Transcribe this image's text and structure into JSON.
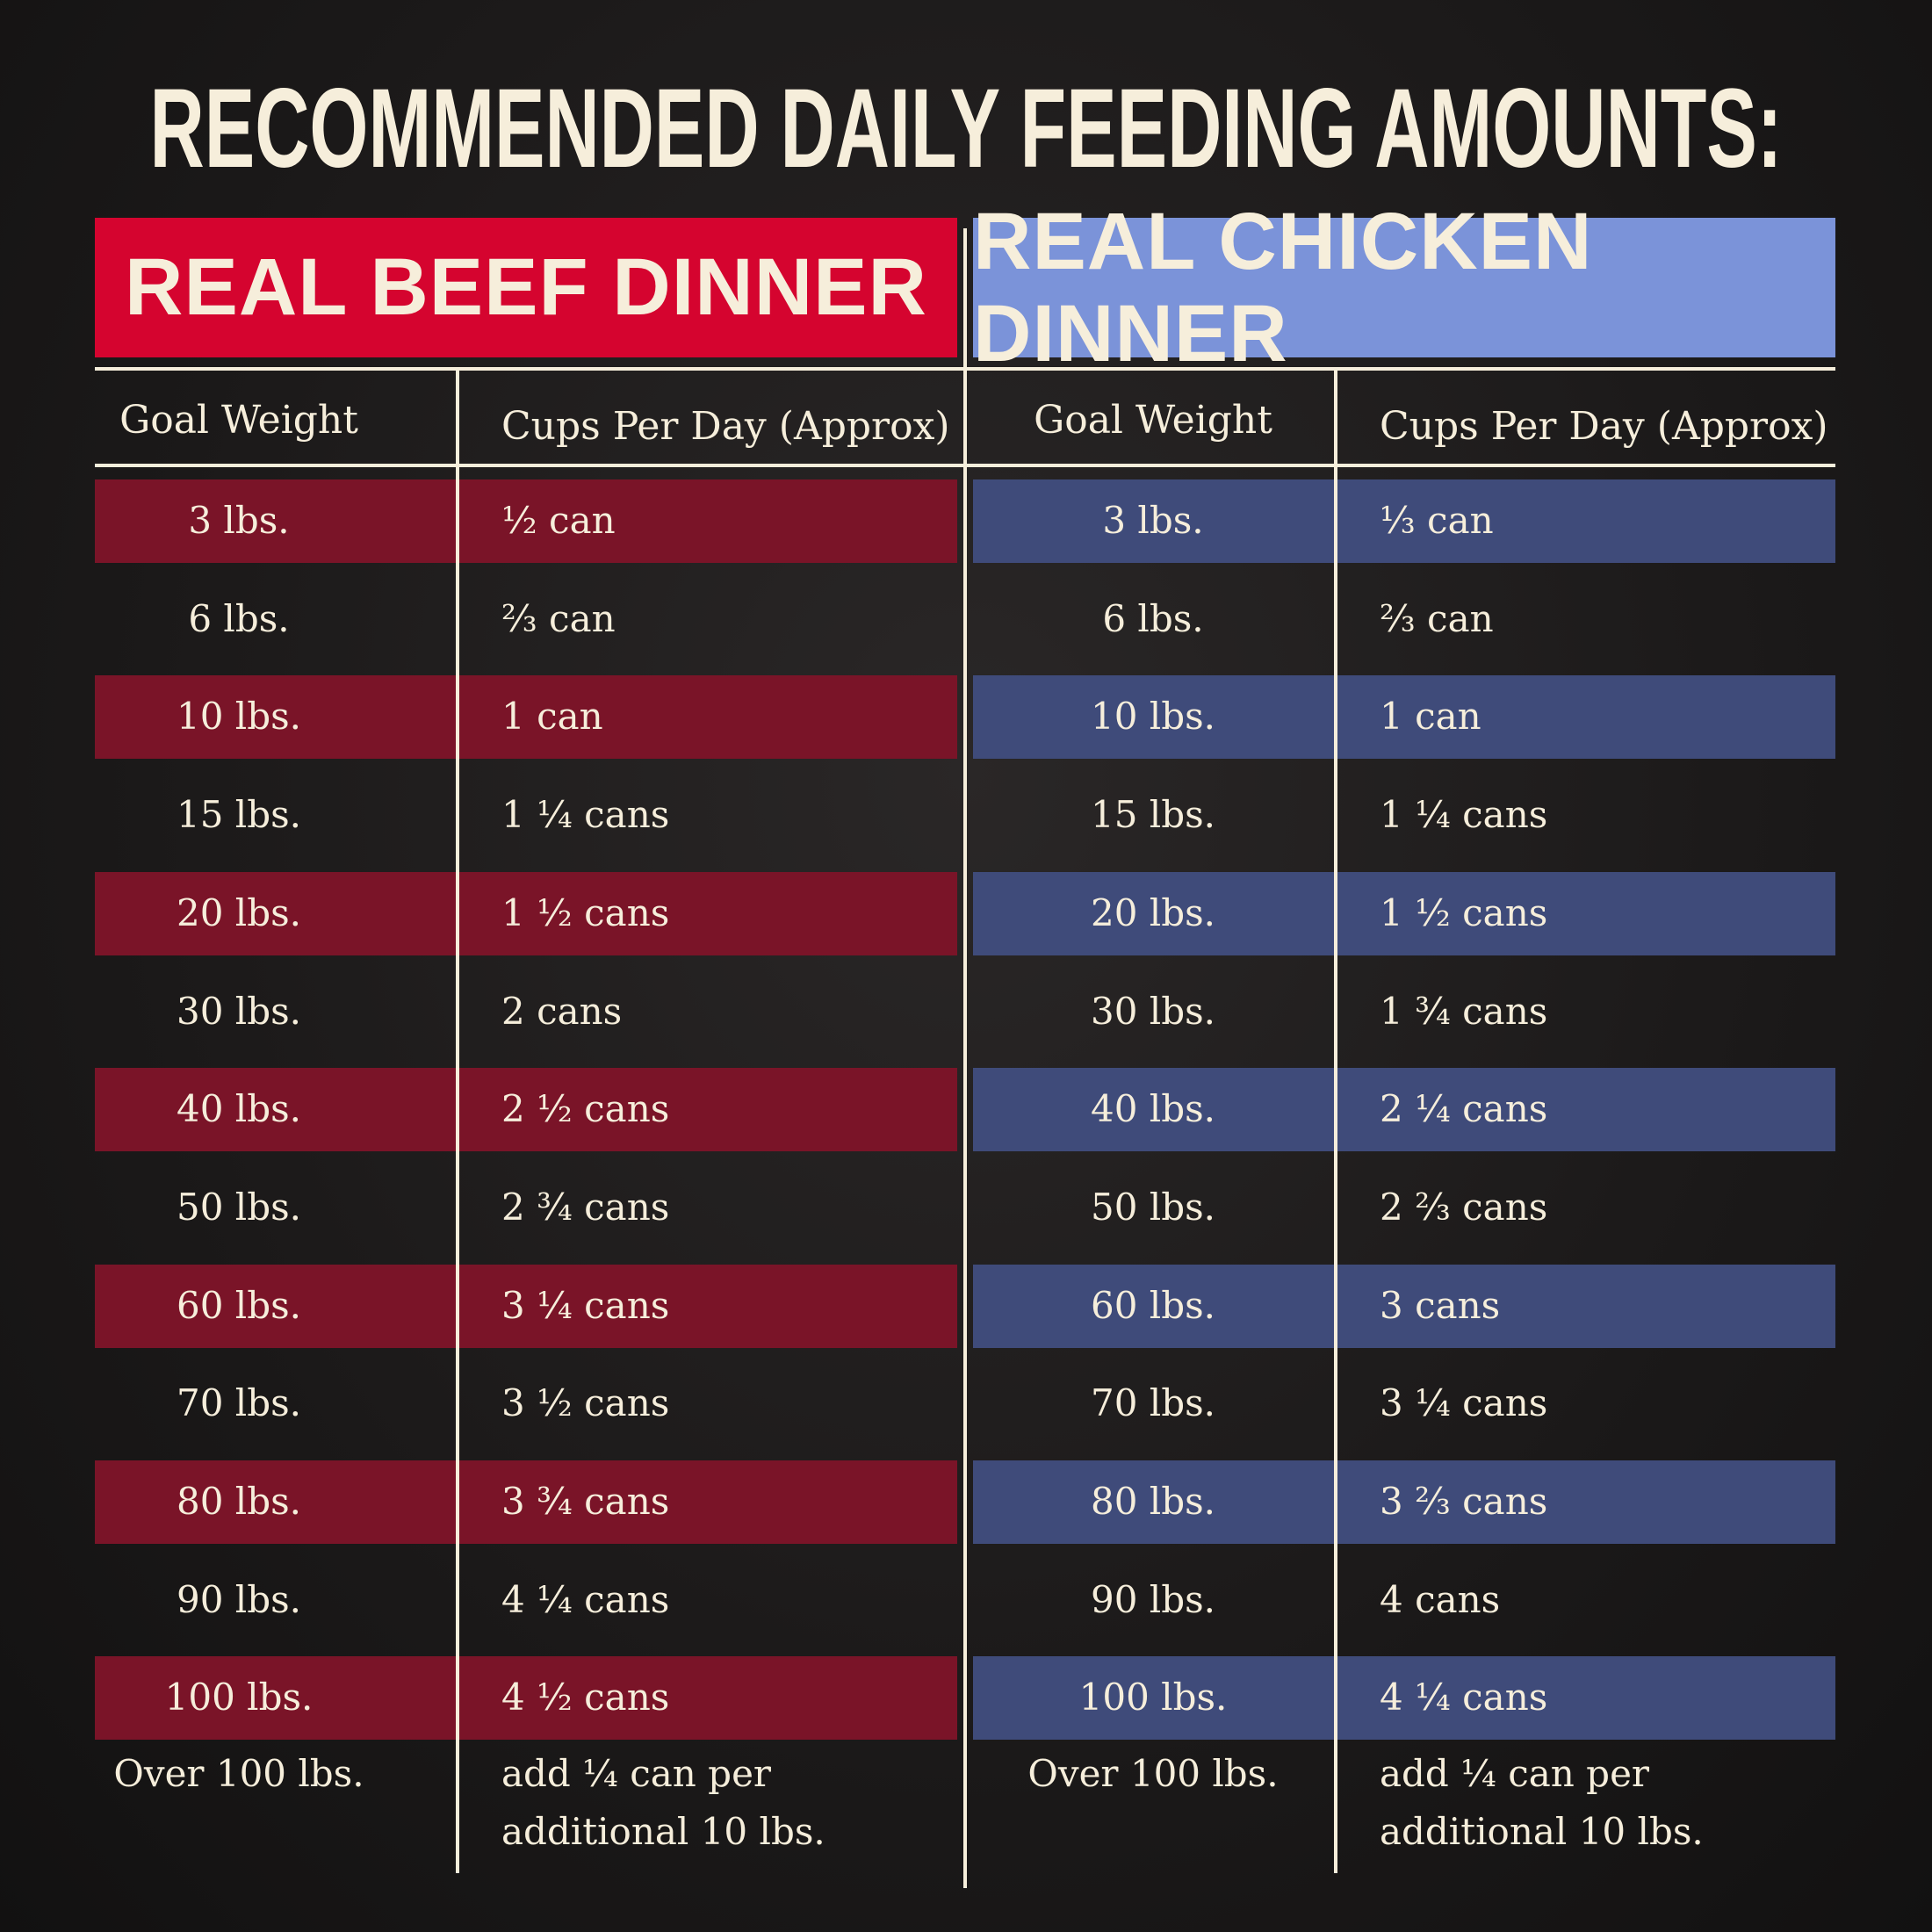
{
  "title": "RECOMMENDED DAILY FEEDING AMOUNTS:",
  "tables": [
    {
      "name": "REAL BEEF DINNER",
      "columns": [
        "Goal Weight",
        "Cups Per Day (Approx)"
      ],
      "rows": [
        [
          "3 lbs.",
          "½ can"
        ],
        [
          "6 lbs.",
          "⅔ can"
        ],
        [
          "10 lbs.",
          "1 can"
        ],
        [
          "15 lbs.",
          "1 ¼ cans"
        ],
        [
          "20 lbs.",
          "1 ½ cans"
        ],
        [
          "30 lbs.",
          "2 cans"
        ],
        [
          "40 lbs.",
          "2 ½ cans"
        ],
        [
          "50 lbs.",
          "2 ¾ cans"
        ],
        [
          "60 lbs.",
          "3 ¼ cans"
        ],
        [
          "70 lbs.",
          "3 ½ cans"
        ],
        [
          "80 lbs.",
          "3 ¾ cans"
        ],
        [
          "90 lbs.",
          "4 ¼ cans"
        ],
        [
          "100 lbs.",
          "4 ½ cans"
        ],
        [
          "Over 100 lbs.",
          "add ¼ can per\nadditional 10 lbs."
        ]
      ]
    },
    {
      "name": "REAL CHICKEN DINNER",
      "columns": [
        "Goal Weight",
        "Cups Per Day (Approx)"
      ],
      "rows": [
        [
          "3 lbs.",
          "⅓ can"
        ],
        [
          "6 lbs.",
          "⅔ can"
        ],
        [
          "10 lbs.",
          "1 can"
        ],
        [
          "15 lbs.",
          "1 ¼ cans"
        ],
        [
          "20 lbs.",
          "1 ½ cans"
        ],
        [
          "30 lbs.",
          "1 ¾ cans"
        ],
        [
          "40 lbs.",
          "2 ¼ cans"
        ],
        [
          "50 lbs.",
          "2 ⅔ cans"
        ],
        [
          "60 lbs.",
          "3 cans"
        ],
        [
          "70 lbs.",
          "3 ¼ cans"
        ],
        [
          "80 lbs.",
          "3 ⅔ cans"
        ],
        [
          "90 lbs.",
          "4 cans"
        ],
        [
          "100 lbs.",
          "4 ¼ cans"
        ],
        [
          "Over 100 lbs.",
          "add ¼ can per\nadditional 10 lbs."
        ]
      ]
    }
  ]
}
